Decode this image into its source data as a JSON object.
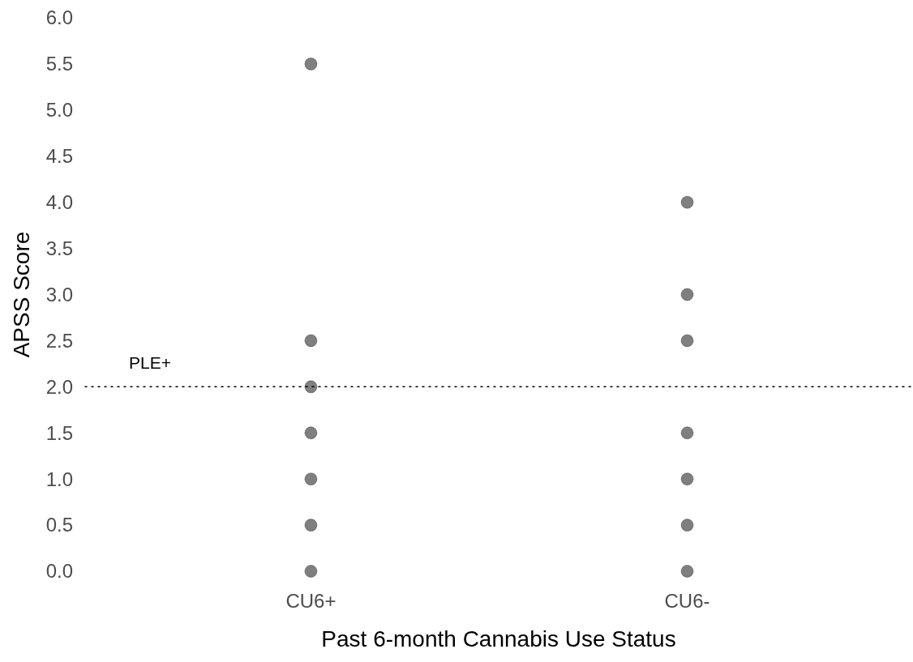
{
  "chart_data": {
    "type": "scatter",
    "xlabel": "Past 6-month Cannabis Use Status",
    "ylabel": "APSS Score",
    "categories": [
      "CU6+",
      "CU6-"
    ],
    "series": [
      {
        "type": "scatter",
        "color": "#000000",
        "x": [
          "CU6+",
          "CU6+",
          "CU6+",
          "CU6+",
          "CU6+",
          "CU6+",
          "CU6+"
        ],
        "values": [
          5.5,
          2.5,
          2,
          1.5,
          1,
          0.5,
          0
        ]
      },
      {
        "type": "scatter",
        "color": "#000000",
        "x": [
          "CU6-",
          "CU6-",
          "CU6-",
          "CU6-",
          "CU6-",
          "CU6-",
          "CU6-"
        ],
        "values": [
          4,
          3,
          2.5,
          1.5,
          1,
          0.5,
          0
        ]
      }
    ],
    "ylim": [
      0,
      6
    ],
    "yticks": [
      {
        "value": 0,
        "label": "0.0"
      },
      0.5,
      {
        "value": 1,
        "label": "1.0"
      },
      1.5,
      {
        "value": 2,
        "label": "2.0"
      },
      2.5,
      {
        "value": 3,
        "label": "3.0"
      },
      3.5,
      {
        "value": 4,
        "label": "4.0"
      },
      4.5,
      {
        "value": 5,
        "label": "5.0"
      },
      5.5,
      {
        "value": 6,
        "label": "6.0"
      }
    ],
    "ref_lines": [
      {
        "axis": "y",
        "value": 2,
        "label": "PLE+",
        "color": "#000000",
        "line_style": "dotted"
      }
    ],
    "marker": "circle"
  }
}
